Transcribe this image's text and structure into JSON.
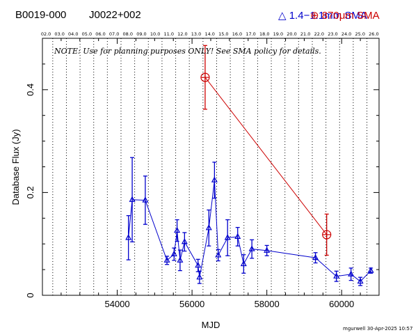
{
  "header": {
    "source_b1950": "B0019-000",
    "source_j2000": "J0022+002",
    "legend_blue": "1.4−1.1mm SMA",
    "legend_red_value": "870",
    "legend_red_unit": "μm SMA"
  },
  "note": "NOTE: Use for planning purposes ONLY! See SMA policy for details.",
  "footer": "mgurwell 30-Apr-2025 10:57",
  "colors": {
    "blue": "#0000cc",
    "red": "#cc0000",
    "grid": "#000000"
  },
  "chart_data": {
    "type": "scatter",
    "xlabel": "MJD",
    "ylabel": "Database Flux (Jy)",
    "xlim": [
      52000,
      61000
    ],
    "ylim": [
      0,
      0.5
    ],
    "x_ticks": [
      54000,
      56000,
      58000,
      60000
    ],
    "y_ticks": [
      0,
      0.2,
      0.4
    ],
    "y_tick_labels": [
      "0",
      "0.2",
      "0.4"
    ],
    "top_axis_labels": [
      "02.0",
      "03.0",
      "04.0",
      "05.0",
      "06.0",
      "07.0",
      "08.0",
      "09.0",
      "10.0",
      "11.0",
      "12.0",
      "13.0",
      "14.0",
      "15.0",
      "16.0",
      "17.0",
      "18.0",
      "19.0",
      "20.0",
      "21.0",
      "22.0",
      "23.0",
      "24.0",
      "25.0",
      "26.0"
    ],
    "year_lines_mjd": [
      52276,
      52641,
      53006,
      53371,
      53736,
      54101,
      54466,
      54832,
      55197,
      55562,
      55927,
      56293,
      56658,
      57023,
      57388,
      57754,
      58119,
      58484,
      58849,
      59215,
      59580,
      59945,
      60310,
      60676
    ],
    "series": [
      {
        "name": "1.4−1.1mm SMA",
        "color": "#0000cc",
        "marker": "triangle",
        "points": [
          {
            "x": 54300,
            "y": 0.112,
            "err": 0.043
          },
          {
            "x": 54400,
            "y": 0.186,
            "err": 0.082
          },
          {
            "x": 54750,
            "y": 0.185,
            "err": 0.047
          },
          {
            "x": 55330,
            "y": 0.068,
            "err": 0.008
          },
          {
            "x": 55520,
            "y": 0.08,
            "err": 0.012
          },
          {
            "x": 55600,
            "y": 0.126,
            "err": 0.021
          },
          {
            "x": 55680,
            "y": 0.068,
            "err": 0.02
          },
          {
            "x": 55800,
            "y": 0.104,
            "err": 0.018
          },
          {
            "x": 56160,
            "y": 0.058,
            "err": 0.012
          },
          {
            "x": 56200,
            "y": 0.035,
            "err": 0.012
          },
          {
            "x": 56450,
            "y": 0.131,
            "err": 0.035
          },
          {
            "x": 56600,
            "y": 0.224,
            "err": 0.035
          },
          {
            "x": 56700,
            "y": 0.078,
            "err": 0.011
          },
          {
            "x": 56950,
            "y": 0.112,
            "err": 0.035
          },
          {
            "x": 57220,
            "y": 0.114,
            "err": 0.018
          },
          {
            "x": 57380,
            "y": 0.061,
            "err": 0.018
          },
          {
            "x": 57600,
            "y": 0.09,
            "err": 0.018
          },
          {
            "x": 58000,
            "y": 0.087,
            "err": 0.01
          },
          {
            "x": 59300,
            "y": 0.073,
            "err": 0.01
          },
          {
            "x": 59860,
            "y": 0.037,
            "err": 0.01
          },
          {
            "x": 60250,
            "y": 0.041,
            "err": 0.012
          },
          {
            "x": 60500,
            "y": 0.027,
            "err": 0.008
          },
          {
            "x": 60780,
            "y": 0.048,
            "err": 0.005
          }
        ]
      },
      {
        "name": "870μm SMA",
        "color": "#cc0000",
        "marker": "circled-plus",
        "points": [
          {
            "x": 56350,
            "y": 0.424,
            "err": 0.062
          },
          {
            "x": 59600,
            "y": 0.118,
            "err": 0.04
          }
        ]
      }
    ]
  }
}
